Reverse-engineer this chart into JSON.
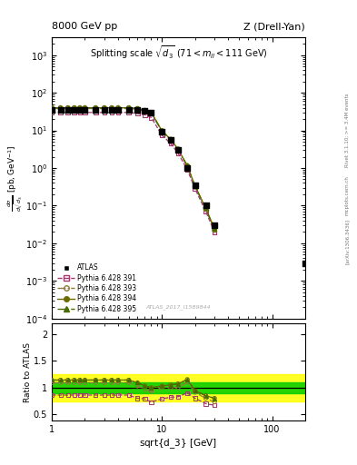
{
  "title_left": "8000 GeV pp",
  "title_right": "Z (Drell-Yan)",
  "plot_title": "Splitting scale $\\sqrt{d_3}$ (71 < m$_{ll}$ < 111 GeV)",
  "watermark": "ATLAS_2017_I1589844",
  "right_label_top": "Rivet 3.1.10; >= 3.4M events",
  "right_label_bottom": "[arXiv:1306.3436]",
  "right_label_url": "mcplots.cern.ch",
  "xlabel": "sqrt{d_3} [GeV]",
  "ylabel_ratio": "Ratio to ATLAS",
  "xlim": [
    1.0,
    200.0
  ],
  "ylim_main": [
    0.0001,
    3000.0
  ],
  "ylim_ratio": [
    0.38,
    2.2
  ],
  "atlas_x": [
    1.0,
    1.2,
    1.4,
    1.6,
    1.8,
    2.0,
    2.5,
    3.0,
    3.5,
    4.0,
    5.0,
    6.0,
    7.0,
    8.0,
    10.0,
    12.0,
    14.0,
    17.0,
    20.0,
    25.0,
    30.0,
    200.0
  ],
  "atlas_y": [
    35,
    35,
    35,
    35,
    35,
    35,
    35,
    35,
    35,
    35,
    35,
    35,
    33,
    30,
    9.5,
    5.5,
    3.0,
    1.0,
    0.35,
    0.1,
    0.03,
    0.003
  ],
  "pythia391_x": [
    1.0,
    1.2,
    1.4,
    1.6,
    1.8,
    2.0,
    2.5,
    3.0,
    3.5,
    4.0,
    5.0,
    6.0,
    7.0,
    8.0,
    10.0,
    12.0,
    14.0,
    17.0,
    20.0,
    25.0,
    30.0
  ],
  "pythia391_y": [
    30,
    30,
    30,
    30,
    30,
    30,
    30,
    30,
    30,
    30,
    30,
    28,
    26,
    22,
    7.5,
    4.5,
    2.5,
    0.9,
    0.28,
    0.07,
    0.02
  ],
  "pythia393_x": [
    1.0,
    1.2,
    1.4,
    1.6,
    1.8,
    2.0,
    2.5,
    3.0,
    3.5,
    4.0,
    5.0,
    6.0,
    7.0,
    8.0,
    10.0,
    12.0,
    14.0,
    17.0,
    20.0,
    25.0,
    30.0
  ],
  "pythia393_y": [
    38,
    38,
    38,
    38,
    38,
    38,
    38,
    38,
    38,
    38,
    38,
    36,
    32,
    28,
    9.5,
    5.5,
    3.0,
    1.1,
    0.32,
    0.08,
    0.022
  ],
  "pythia394_x": [
    1.0,
    1.2,
    1.4,
    1.6,
    1.8,
    2.0,
    2.5,
    3.0,
    3.5,
    4.0,
    5.0,
    6.0,
    7.0,
    8.0,
    10.0,
    12.0,
    14.0,
    17.0,
    20.0,
    25.0,
    30.0
  ],
  "pythia394_y": [
    40,
    40,
    40,
    40,
    40,
    40,
    40,
    40,
    40,
    40,
    40,
    38,
    34,
    30,
    9.8,
    5.8,
    3.2,
    1.15,
    0.33,
    0.085,
    0.024
  ],
  "pythia395_x": [
    1.0,
    1.2,
    1.4,
    1.6,
    1.8,
    2.0,
    2.5,
    3.0,
    3.5,
    4.0,
    5.0,
    6.0,
    7.0,
    8.0,
    10.0,
    12.0,
    14.0,
    17.0,
    20.0,
    25.0,
    30.0
  ],
  "pythia395_y": [
    40,
    40,
    40,
    40,
    40,
    40,
    40,
    40,
    40,
    40,
    40,
    38,
    34,
    30,
    9.8,
    5.8,
    3.2,
    1.15,
    0.33,
    0.085,
    0.024
  ],
  "ratio391_y": [
    0.86,
    0.86,
    0.86,
    0.86,
    0.86,
    0.86,
    0.86,
    0.86,
    0.86,
    0.86,
    0.86,
    0.8,
    0.79,
    0.73,
    0.79,
    0.82,
    0.83,
    0.9,
    0.8,
    0.7,
    0.67
  ],
  "ratio393_y": [
    1.09,
    1.09,
    1.09,
    1.09,
    1.09,
    1.09,
    1.09,
    1.09,
    1.09,
    1.09,
    1.09,
    1.03,
    0.97,
    0.93,
    1.0,
    1.0,
    1.0,
    1.1,
    0.91,
    0.8,
    0.73
  ],
  "ratio394_y": [
    1.14,
    1.14,
    1.14,
    1.14,
    1.14,
    1.14,
    1.14,
    1.14,
    1.14,
    1.14,
    1.14,
    1.09,
    1.03,
    1.0,
    1.03,
    1.05,
    1.07,
    1.15,
    0.94,
    0.85,
    0.8
  ],
  "ratio395_y": [
    1.14,
    1.14,
    1.14,
    1.14,
    1.14,
    1.14,
    1.14,
    1.14,
    1.14,
    1.14,
    1.14,
    1.09,
    1.03,
    1.0,
    1.03,
    1.05,
    1.07,
    1.15,
    0.94,
    0.85,
    0.8
  ],
  "atlas_color": "#000000",
  "py391_color": "#9e3a6b",
  "py393_color": "#8b7d3a",
  "py394_color": "#6b6b00",
  "py395_color": "#4a6b00",
  "band_yellow": "#ffff00",
  "band_green": "#00cc00",
  "ratio_band_yellow_lo": 0.75,
  "ratio_band_yellow_hi": 1.25,
  "ratio_band_green_lo": 0.9,
  "ratio_band_green_hi": 1.1,
  "ratio_band_last_x": 30.0,
  "ratio_band_end_x": 200.0
}
